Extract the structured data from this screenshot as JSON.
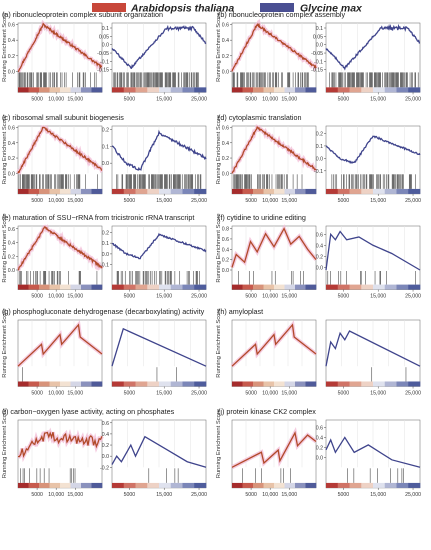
{
  "legend": {
    "items": [
      {
        "label": "Arabidopsis thaliana",
        "color": "#c8473a"
      },
      {
        "label": "Glycine max",
        "color": "#4a4f92"
      }
    ]
  },
  "colors": {
    "at_line": "#b14a2a",
    "gm_line": "#3f448c",
    "glow": "#f3bfd8",
    "at_bar": [
      "#a52c2c",
      "#c75a4d",
      "#d8937a",
      "#e8c3a8",
      "#f3e2d2",
      "#d4d6e6",
      "#8a91bd",
      "#4f5a99"
    ],
    "gm_bar": [
      "#b53a36",
      "#d07366",
      "#e0a591",
      "#eed2c5",
      "#dfe2ee",
      "#b0b6d4",
      "#7b86b8",
      "#4e5c9c"
    ]
  },
  "y_axis_label": "Running Enrichment Score",
  "chart_data": [
    {
      "type": "line",
      "label": "(a) ribonucleoprotein complex subunit organization",
      "at": {
        "ylim": [
          0.0,
          0.62
        ],
        "yticks": [
          0.0,
          0.2,
          0.4,
          0.6
        ],
        "xticks": [
          "5000",
          "10,000",
          "15,000"
        ],
        "xmax": 22000,
        "hit_density": 0.75
      },
      "gm": {
        "ylim": [
          -0.16,
          0.13
        ],
        "yticks": [
          0.1,
          0.05,
          0.0,
          -0.05,
          -0.1,
          -0.15
        ],
        "xticks": [
          "5000",
          "15,000",
          "25,000"
        ],
        "xmax": 27000,
        "hit_density": 0.7
      }
    },
    {
      "type": "line",
      "label": "(b) ribonucleoprotein complex assembly",
      "at": {
        "ylim": [
          0.0,
          0.62
        ],
        "yticks": [
          0.0,
          0.2,
          0.4,
          0.6
        ],
        "xticks": [
          "5000",
          "10,000",
          "15,000"
        ],
        "xmax": 22000,
        "hit_density": 0.75
      },
      "gm": {
        "ylim": [
          -0.16,
          0.13
        ],
        "yticks": [
          0.1,
          0.05,
          0.0,
          -0.05,
          -0.1,
          -0.15
        ],
        "xticks": [
          "5000",
          "15,000",
          "25,000"
        ],
        "xmax": 27000,
        "hit_density": 0.7
      }
    },
    {
      "type": "line",
      "label": "(c) ribosomal small subunit biogenesis",
      "at": {
        "ylim": [
          0.0,
          0.62
        ],
        "yticks": [
          0.0,
          0.2,
          0.4,
          0.6
        ],
        "xticks": [
          "5000",
          "10,000",
          "15,000"
        ],
        "xmax": 22000,
        "hit_density": 0.6
      },
      "gm": {
        "ylim": [
          -0.06,
          0.22
        ],
        "yticks": [
          0.2,
          0.1,
          0.0
        ],
        "xticks": [
          "5000",
          "15,000",
          "25,000"
        ],
        "xmax": 27000,
        "hit_density": 0.55
      }
    },
    {
      "type": "line",
      "label": "(d) cytoplasmic translation",
      "at": {
        "ylim": [
          0.0,
          0.62
        ],
        "yticks": [
          0.0,
          0.2,
          0.4,
          0.6
        ],
        "xticks": [
          "5000",
          "10,000",
          "15,000"
        ],
        "xmax": 22000,
        "hit_density": 0.6
      },
      "gm": {
        "ylim": [
          -0.12,
          0.26
        ],
        "yticks": [
          0.2,
          0.1,
          0.0,
          -0.1
        ],
        "xticks": [
          "5000",
          "15,000",
          "25,000"
        ],
        "xmax": 27000,
        "hit_density": 0.55
      }
    },
    {
      "type": "line",
      "label": "(e) maturation of SSU−rRNA from tricistronic rRNA transcript",
      "at": {
        "ylim": [
          0.0,
          0.64
        ],
        "yticks": [
          0.0,
          0.2,
          0.4,
          0.6
        ],
        "xticks": [
          "5000",
          "10,000",
          "15,000"
        ],
        "xmax": 22000,
        "hit_density": 0.4
      },
      "gm": {
        "ylim": [
          -0.15,
          0.26
        ],
        "yticks": [
          0.2,
          0.1,
          0.0,
          -0.1
        ],
        "xticks": [
          "5000",
          "15,000",
          "25,000"
        ],
        "xmax": 27000,
        "hit_density": 0.35
      }
    },
    {
      "type": "line",
      "label": "(f) cytidine to uridine editing",
      "at": {
        "ylim": [
          0.0,
          0.85
        ],
        "yticks": [
          0.0,
          0.2,
          0.4,
          0.6,
          0.8
        ],
        "xticks": [
          "5000",
          "10,000",
          "15,000"
        ],
        "xmax": 22000,
        "hit_density": 0.12
      },
      "gm": {
        "ylim": [
          -0.05,
          0.75
        ],
        "yticks": [
          0.6,
          0.4,
          0.2,
          0.0
        ],
        "xticks": [
          "5000",
          "15,000",
          "25,000"
        ],
        "xmax": 27000,
        "hit_density": 0.1
      }
    },
    {
      "type": "line",
      "label": "(g) phosphogluconate dehydrogenase (decarboxylating) activity",
      "at": {
        "ylim": [
          0.0,
          0.95
        ],
        "yticks": [],
        "xticks": [
          "5000",
          "10,000",
          "15,000"
        ],
        "xmax": 22000,
        "hit_density": 0.03
      },
      "gm": {
        "ylim": [
          -0.1,
          0.95
        ],
        "yticks": [],
        "xticks": [
          "5000",
          "15,000",
          "25,000"
        ],
        "xmax": 27000,
        "hit_density": 0.02
      }
    },
    {
      "type": "line",
      "label": "(h) amyloplast",
      "at": {
        "ylim": [
          0.0,
          0.95
        ],
        "yticks": [],
        "xticks": [
          "5000",
          "10,000",
          "15,000"
        ],
        "xmax": 22000,
        "hit_density": 0.03
      },
      "gm": {
        "ylim": [
          -0.1,
          0.95
        ],
        "yticks": [],
        "xticks": [
          "5000",
          "15,000",
          "25,000"
        ],
        "xmax": 27000,
        "hit_density": 0.03
      }
    },
    {
      "type": "line",
      "label": "(i) carbon−oxygen lyase activity, acting on phosphates",
      "at": {
        "ylim": [
          -0.2,
          0.75
        ],
        "yticks": [],
        "xticks": [
          "5000",
          "10,000",
          "15,000"
        ],
        "xmax": 22000,
        "hit_density": 0.08
      },
      "gm": {
        "ylim": [
          -0.2,
          0.65
        ],
        "yticks": [
          0.6,
          0.4,
          0.2,
          0.0,
          -0.2
        ],
        "xticks": [
          "5000",
          "15,000",
          "25,000"
        ],
        "xmax": 27000,
        "hit_density": 0.04
      }
    },
    {
      "type": "line",
      "label": "(j) protein kinase CK2 complex",
      "at": {
        "ylim": [
          -0.15,
          0.95
        ],
        "yticks": [],
        "xticks": [
          "5000",
          "10,000",
          "15,000"
        ],
        "xmax": 22000,
        "hit_density": 0.04
      },
      "gm": {
        "ylim": [
          -0.2,
          0.75
        ],
        "yticks": [
          0.6,
          0.4,
          0.2,
          0.0
        ],
        "xticks": [
          "5000",
          "15,000",
          "25,000"
        ],
        "xmax": 27000,
        "hit_density": 0.04
      }
    }
  ]
}
